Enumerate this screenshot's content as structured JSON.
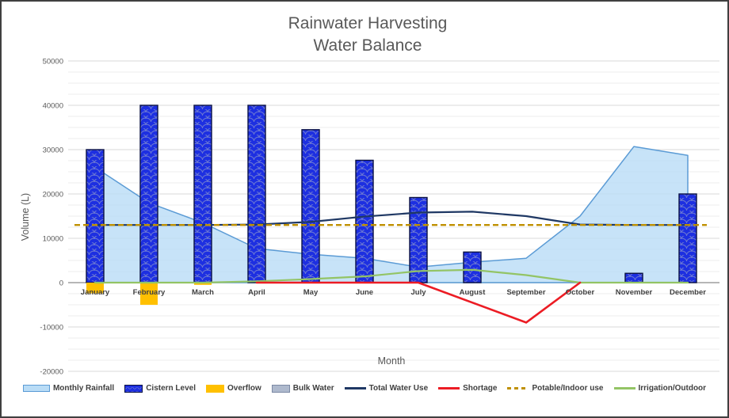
{
  "title": {
    "line1": "Rainwater Harvesting",
    "line2": "Water Balance"
  },
  "axes": {
    "y_title": "Volume (L)",
    "x_title": "Month"
  },
  "chart_data": {
    "type": "combo",
    "title": "Rainwater Harvesting Water Balance",
    "xlabel": "Month",
    "ylabel": "Volume (L)",
    "ylim": [
      -20000,
      50000
    ],
    "y_major_unit": 10000,
    "y_minor_unit": 2500,
    "y_ticks": [
      50000,
      40000,
      30000,
      20000,
      10000,
      0,
      -10000,
      -20000
    ],
    "grid": true,
    "legend_position": "bottom",
    "categories": [
      "January",
      "February",
      "March",
      "April",
      "May",
      "June",
      "July",
      "August",
      "September",
      "October",
      "November",
      "December"
    ],
    "series": [
      {
        "name": "Monthly Rainfall",
        "type": "area",
        "fill": "#B9DCF6",
        "stroke": "#5B9BD5",
        "values": [
          26000,
          18000,
          13500,
          7700,
          6400,
          5500,
          3500,
          4600,
          5500,
          15000,
          30700,
          28700
        ]
      },
      {
        "name": "Cistern Level",
        "type": "bar",
        "fill": "#1D2FE1",
        "stroke": "#0A1144",
        "pattern": "fish-scale",
        "values": [
          30000,
          40000,
          40000,
          40000,
          34500,
          27600,
          19200,
          6900,
          0,
          0,
          2100,
          20000
        ]
      },
      {
        "name": "Overflow",
        "type": "bar",
        "fill": "#FFC000",
        "values": [
          -2400,
          -5000,
          -500,
          0,
          0,
          0,
          0,
          0,
          0,
          0,
          0,
          0
        ]
      },
      {
        "name": "Bulk Water",
        "type": "bar",
        "fill": "#AEB9CD",
        "stroke": "#7C8AA5",
        "values": [
          0,
          0,
          0,
          0,
          0,
          0,
          0,
          0,
          0,
          0,
          0,
          0
        ]
      },
      {
        "name": "Total Water Use",
        "type": "line",
        "stroke": "#1F3864",
        "values": [
          13000,
          13000,
          13000,
          13100,
          13700,
          14900,
          15800,
          16000,
          15000,
          13100,
          13000,
          13000
        ]
      },
      {
        "name": "Shortage",
        "type": "line",
        "stroke": "#EC1C24",
        "values": [
          null,
          null,
          null,
          0,
          0,
          0,
          0,
          -4500,
          -9000,
          0,
          null,
          null
        ]
      },
      {
        "name": "Potable/Indoor use",
        "type": "line",
        "dash": "dashed",
        "stroke": "#BF9000",
        "full_width": true,
        "values": [
          13000,
          13000,
          13000,
          13000,
          13000,
          13000,
          13000,
          13000,
          13000,
          13000,
          13000,
          13000
        ]
      },
      {
        "name": "Irrigation/Outdoor",
        "type": "line",
        "stroke": "#93C465",
        "values": [
          0,
          0,
          0,
          300,
          800,
          1400,
          2600,
          2900,
          1700,
          0,
          0,
          0
        ]
      }
    ]
  }
}
